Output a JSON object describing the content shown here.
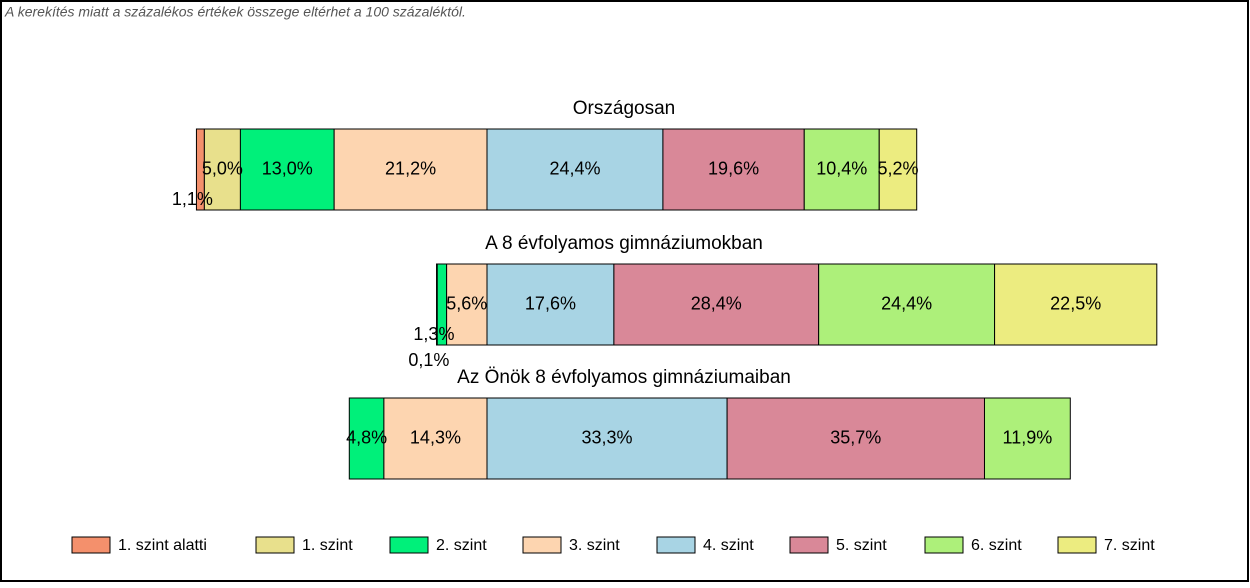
{
  "chart_data": {
    "type": "stacked-bar-horizontal",
    "note": "A kerekítés miatt a  százalékos értékek összege eltérhet a 100 százaléktól.",
    "categories": [
      "Országosan",
      "A 8 évfolyamos gimnáziumokban",
      "Az Önök 8 évfolyamos gimnáziumaiban"
    ],
    "series": [
      {
        "name": "1. szint alatti",
        "color": "#f4906c",
        "values": [
          1.1,
          null,
          null
        ],
        "value_labels": [
          "1,1%",
          null,
          null
        ]
      },
      {
        "name": "1. szint",
        "color": "#e8e08c",
        "values": [
          5.0,
          0.1,
          null
        ],
        "value_labels": [
          "5,0%",
          "0,1%",
          null
        ]
      },
      {
        "name": "2. szint",
        "color": "#00f07a",
        "values": [
          13.0,
          1.3,
          4.8
        ],
        "value_labels": [
          "13,0%",
          "1,3%",
          "4,8%"
        ]
      },
      {
        "name": "3. szint",
        "color": "#fdd5b0",
        "values": [
          21.2,
          5.6,
          14.3
        ],
        "value_labels": [
          "21,2%",
          "5,6%",
          "14,3%"
        ]
      },
      {
        "name": "4. szint",
        "color": "#a8d4e4",
        "values": [
          24.4,
          17.6,
          33.3
        ],
        "value_labels": [
          "24,4%",
          "17,6%",
          "33,3%"
        ]
      },
      {
        "name": "5. szint",
        "color": "#d98898",
        "values": [
          19.6,
          28.4,
          35.7
        ],
        "value_labels": [
          "19,6%",
          "28,4%",
          "35,7%"
        ]
      },
      {
        "name": "6. szint",
        "color": "#adf07a",
        "values": [
          10.4,
          24.4,
          11.9
        ],
        "value_labels": [
          "10,4%",
          "24,4%",
          "11,9%"
        ]
      },
      {
        "name": "7. szint",
        "color": "#ecec80",
        "values": [
          5.2,
          22.5,
          null
        ],
        "value_labels": [
          "5,2%",
          "22,5%",
          null
        ]
      }
    ]
  }
}
